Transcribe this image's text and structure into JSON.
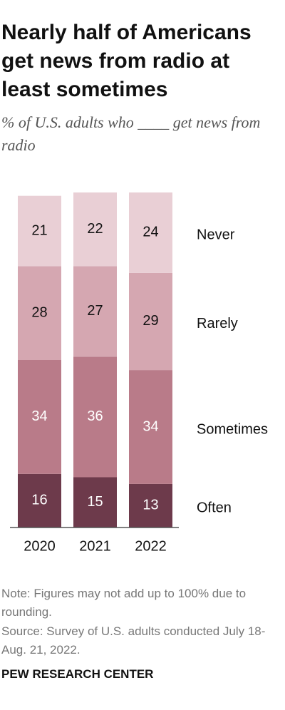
{
  "chart_data": {
    "type": "stacked-bar",
    "title": "Nearly half of Americans get news from radio at least sometimes",
    "subtitle": "% of U.S. adults who ____ get news from radio",
    "categories": [
      "2020",
      "2021",
      "2022"
    ],
    "series": [
      {
        "name": "Often",
        "color": "#6d3a4b",
        "values": [
          16,
          15,
          13
        ]
      },
      {
        "name": "Sometimes",
        "color": "#b97b89",
        "values": [
          34,
          36,
          34
        ]
      },
      {
        "name": "Rarely",
        "color": "#d5a7b1",
        "values": [
          28,
          27,
          29
        ]
      },
      {
        "name": "Never",
        "color": "#e9cfd5",
        "values": [
          21,
          22,
          24
        ]
      }
    ],
    "note": "Note: Figures may not add up to 100% due to rounding.",
    "source": "Source: Survey of U.S. adults conducted July 18-Aug. 21, 2022.",
    "credit": "PEW RESEARCH CENTER"
  }
}
